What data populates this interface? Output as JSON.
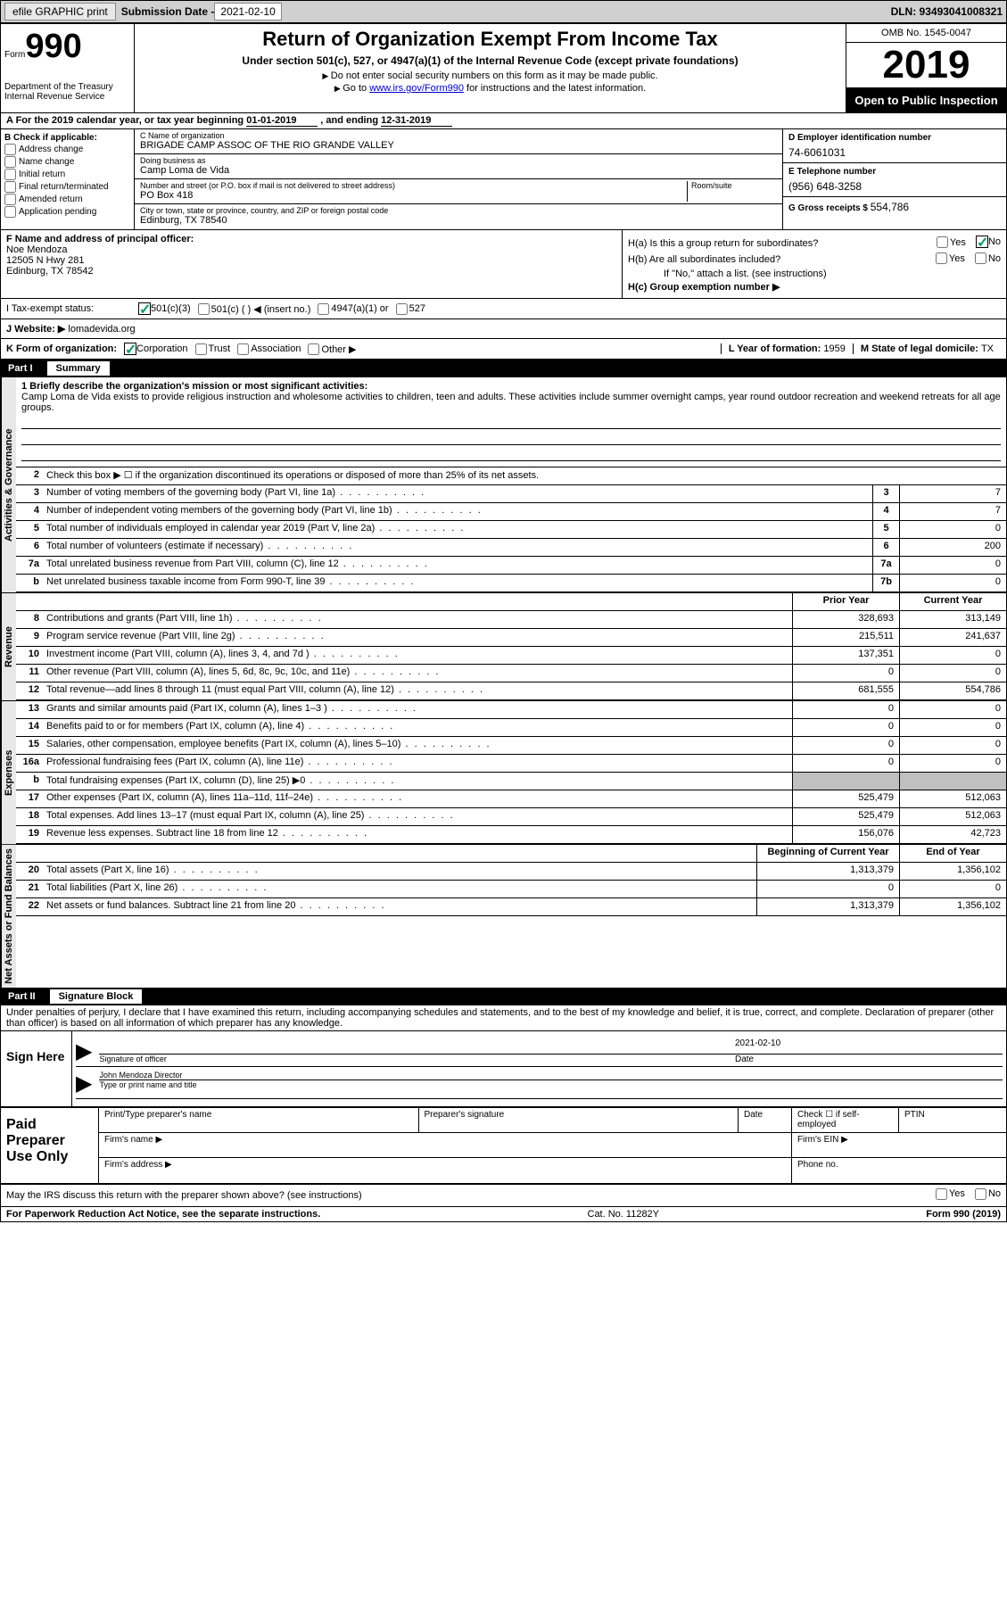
{
  "topbar": {
    "efile": "efile GRAPHIC print",
    "sub_label": "Submission Date - ",
    "sub_date": "2021-02-10",
    "dln": "DLN: 93493041008321"
  },
  "header": {
    "form_label": "Form",
    "form_num": "990",
    "dept": "Department of the Treasury\nInternal Revenue Service",
    "title": "Return of Organization Exempt From Income Tax",
    "subtitle": "Under section 501(c), 527, or 4947(a)(1) of the Internal Revenue Code (except private foundations)",
    "note1": "Do not enter social security numbers on this form as it may be made public.",
    "note2_pre": "Go to ",
    "note2_link": "www.irs.gov/Form990",
    "note2_post": " for instructions and the latest information.",
    "omb": "OMB No. 1545-0047",
    "year": "2019",
    "inspection": "Open to Public Inspection"
  },
  "line_a": {
    "text_pre": "A For the 2019 calendar year, or tax year beginning ",
    "begin": "01-01-2019",
    "mid": " , and ending ",
    "end": "12-31-2019"
  },
  "col_b": {
    "header": "B Check if applicable:",
    "opts": [
      "Address change",
      "Name change",
      "Initial return",
      "Final return/terminated",
      "Amended return",
      "Application pending"
    ]
  },
  "col_c": {
    "name_label": "C Name of organization",
    "name": "BRIGADE CAMP ASSOC OF THE RIO GRANDE VALLEY",
    "dba_label": "Doing business as",
    "dba": "Camp Loma de Vida",
    "addr_label": "Number and street (or P.O. box if mail is not delivered to street address)",
    "room_label": "Room/suite",
    "addr": "PO Box 418",
    "city_label": "City or town, state or province, country, and ZIP or foreign postal code",
    "city": "Edinburg, TX  78540"
  },
  "col_d": {
    "ein_label": "D Employer identification number",
    "ein": "74-6061031",
    "phone_label": "E Telephone number",
    "phone": "(956) 648-3258",
    "gross_label": "G Gross receipts $ ",
    "gross": "554,786"
  },
  "col_f": {
    "label": "F Name and address of principal officer:",
    "name": "Noe Mendoza",
    "addr1": "12505 N Hwy 281",
    "addr2": "Edinburg, TX  78542"
  },
  "col_h": {
    "ha_label": "H(a)  Is this a group return for subordinates?",
    "hb_label": "H(b)  Are all subordinates included?",
    "hb_note": "If \"No,\" attach a list. (see instructions)",
    "hc_label": "H(c)  Group exemption number ▶",
    "yes": "Yes",
    "no": "No"
  },
  "status": {
    "label": "I Tax-exempt status:",
    "opt1": "501(c)(3)",
    "opt2": "501(c) (  ) ◀ (insert no.)",
    "opt3": "4947(a)(1) or",
    "opt4": "527"
  },
  "j": {
    "label": "J Website: ▶",
    "val": "lomadevida.org"
  },
  "k": {
    "label": "K Form of organization:",
    "opts": [
      "Corporation",
      "Trust",
      "Association",
      "Other ▶"
    ],
    "l_label": "L Year of formation: ",
    "l_val": "1959",
    "m_label": "M State of legal domicile: ",
    "m_val": "TX"
  },
  "part1": {
    "num": "Part I",
    "title": "Summary",
    "side_gov": "Activities & Governance",
    "side_rev": "Revenue",
    "side_exp": "Expenses",
    "side_net": "Net Assets or Fund Balances",
    "mission_label": "1  Briefly describe the organization's mission or most significant activities:",
    "mission": "Camp Loma de Vida exists to provide religious instruction and wholesome activities to children, teen and adults. These activities include summer overnight camps, year round outdoor recreation and weekend retreats for all age groups.",
    "line2": "Check this box ▶ ☐ if the organization discontinued its operations or disposed of more than 25% of its net assets.",
    "hdr_prior": "Prior Year",
    "hdr_curr": "Current Year",
    "hdr_begin": "Beginning of Current Year",
    "hdr_end": "End of Year",
    "rows_gov": [
      {
        "n": "3",
        "d": "Number of voting members of the governing body (Part VI, line 1a)",
        "b": "3",
        "v": "7"
      },
      {
        "n": "4",
        "d": "Number of independent voting members of the governing body (Part VI, line 1b)",
        "b": "4",
        "v": "7"
      },
      {
        "n": "5",
        "d": "Total number of individuals employed in calendar year 2019 (Part V, line 2a)",
        "b": "5",
        "v": "0"
      },
      {
        "n": "6",
        "d": "Total number of volunteers (estimate if necessary)",
        "b": "6",
        "v": "200"
      },
      {
        "n": "7a",
        "d": "Total unrelated business revenue from Part VIII, column (C), line 12",
        "b": "7a",
        "v": "0"
      },
      {
        "n": "b",
        "d": "Net unrelated business taxable income from Form 990-T, line 39",
        "b": "7b",
        "v": "0"
      }
    ],
    "rows_rev": [
      {
        "n": "8",
        "d": "Contributions and grants (Part VIII, line 1h)",
        "p": "328,693",
        "c": "313,149"
      },
      {
        "n": "9",
        "d": "Program service revenue (Part VIII, line 2g)",
        "p": "215,511",
        "c": "241,637"
      },
      {
        "n": "10",
        "d": "Investment income (Part VIII, column (A), lines 3, 4, and 7d )",
        "p": "137,351",
        "c": "0"
      },
      {
        "n": "11",
        "d": "Other revenue (Part VIII, column (A), lines 5, 6d, 8c, 9c, 10c, and 11e)",
        "p": "0",
        "c": "0"
      },
      {
        "n": "12",
        "d": "Total revenue—add lines 8 through 11 (must equal Part VIII, column (A), line 12)",
        "p": "681,555",
        "c": "554,786"
      }
    ],
    "rows_exp": [
      {
        "n": "13",
        "d": "Grants and similar amounts paid (Part IX, column (A), lines 1–3 )",
        "p": "0",
        "c": "0"
      },
      {
        "n": "14",
        "d": "Benefits paid to or for members (Part IX, column (A), line 4)",
        "p": "0",
        "c": "0"
      },
      {
        "n": "15",
        "d": "Salaries, other compensation, employee benefits (Part IX, column (A), lines 5–10)",
        "p": "0",
        "c": "0"
      },
      {
        "n": "16a",
        "d": "Professional fundraising fees (Part IX, column (A), line 11e)",
        "p": "0",
        "c": "0"
      },
      {
        "n": "b",
        "d": "Total fundraising expenses (Part IX, column (D), line 25) ▶0",
        "p": "",
        "c": "",
        "shade": true
      },
      {
        "n": "17",
        "d": "Other expenses (Part IX, column (A), lines 11a–11d, 11f–24e)",
        "p": "525,479",
        "c": "512,063"
      },
      {
        "n": "18",
        "d": "Total expenses. Add lines 13–17 (must equal Part IX, column (A), line 25)",
        "p": "525,479",
        "c": "512,063"
      },
      {
        "n": "19",
        "d": "Revenue less expenses. Subtract line 18 from line 12",
        "p": "156,076",
        "c": "42,723"
      }
    ],
    "rows_net": [
      {
        "n": "20",
        "d": "Total assets (Part X, line 16)",
        "p": "1,313,379",
        "c": "1,356,102"
      },
      {
        "n": "21",
        "d": "Total liabilities (Part X, line 26)",
        "p": "0",
        "c": "0"
      },
      {
        "n": "22",
        "d": "Net assets or fund balances. Subtract line 21 from line 20",
        "p": "1,313,379",
        "c": "1,356,102"
      }
    ]
  },
  "part2": {
    "num": "Part II",
    "title": "Signature Block",
    "penalty": "Under penalties of perjury, I declare that I have examined this return, including accompanying schedules and statements, and to the best of my knowledge and belief, it is true, correct, and complete. Declaration of preparer (other than officer) is based on all information of which preparer has any knowledge.",
    "sign_here": "Sign Here",
    "sig_officer": "Signature of officer",
    "sig_date": "2021-02-10",
    "date_label": "Date",
    "sig_name": "John Mendoza  Director",
    "sig_name_label": "Type or print name and title",
    "paid_prep": "Paid Preparer Use Only",
    "prep_name": "Print/Type preparer's name",
    "prep_sig": "Preparer's signature",
    "prep_date": "Date",
    "prep_check": "Check ☐ if self-employed",
    "prep_ptin": "PTIN",
    "firm_name": "Firm's name  ▶",
    "firm_ein": "Firm's EIN ▶",
    "firm_addr": "Firm's address ▶",
    "firm_phone": "Phone no.",
    "discuss": "May the IRS discuss this return with the preparer shown above? (see instructions)"
  },
  "footer": {
    "pra": "For Paperwork Reduction Act Notice, see the separate instructions.",
    "cat": "Cat. No. 11282Y",
    "form": "Form 990 (2019)"
  }
}
